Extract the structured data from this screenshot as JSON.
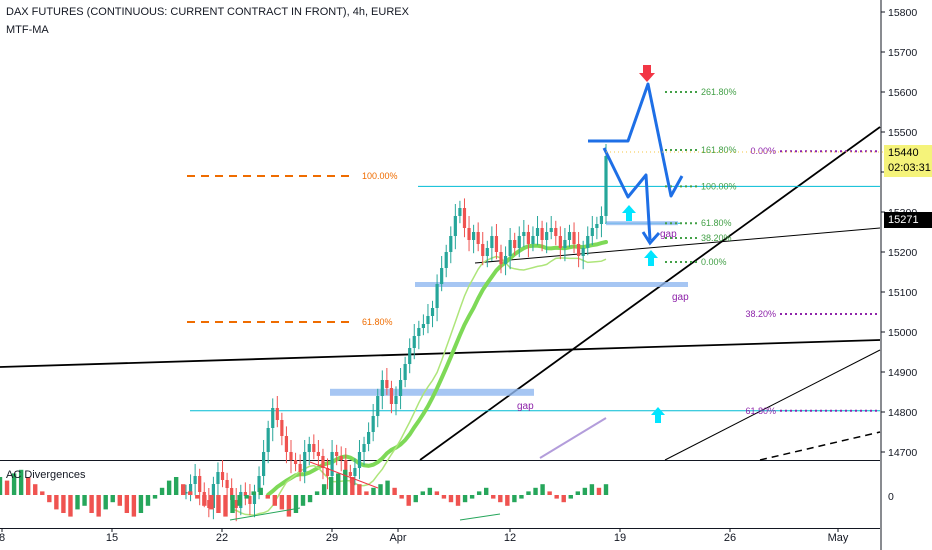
{
  "header": {
    "title": "DAX FUTURES (CONTINUOUS: CURRENT CONTRACT IN FRONT), 4h, EUREX",
    "indicator": "MTF-MA",
    "sub_indicator": "AC Divergences"
  },
  "price_tags": {
    "current": "15440",
    "countdown": "02:03:31",
    "level": "15271"
  },
  "colors": {
    "up": "#26a69a",
    "down": "#ef5350",
    "cyan_line": "#00bcd4",
    "blue_path": "#1e6fe6",
    "orange_fib": "#ef6c00",
    "green_fib": "#43a047",
    "purple_fib": "#8e24aa",
    "gap_fill": "#90b8f0",
    "ma_green": "#7ed957",
    "arrow_cyan": "#00e5ff",
    "arrow_red": "#f23645"
  },
  "chart_data": {
    "type": "candlestick",
    "title": "DAX FUTURES (CONTINUOUS: CURRENT CONTRACT IN FRONT), 4h, EUREX",
    "y_axis": {
      "ticks": [
        15800,
        15700,
        15600,
        15500,
        15400,
        15300,
        15200,
        15100,
        15000,
        14900,
        14800,
        14700
      ],
      "range": [
        14680,
        15830
      ]
    },
    "x_axis": {
      "ticks": [
        "8",
        "15",
        "22",
        "29",
        "Apr",
        "12",
        "19",
        "26",
        "May"
      ]
    },
    "sub_axis_ticks": [
      "0"
    ],
    "close_series": [
      14600,
      14620,
      14640,
      14600,
      14580,
      14560,
      14620,
      14650,
      14630,
      14610,
      14580,
      14560,
      14600,
      14590,
      14570,
      14600,
      14640,
      14700,
      14760,
      14810,
      14780,
      14740,
      14700,
      14680,
      14670,
      14650,
      14700,
      14720,
      14700,
      14690,
      14660,
      14640,
      14700,
      14690,
      14680,
      14650,
      14640,
      14660,
      14700,
      14720,
      14750,
      14790,
      14840,
      14880,
      14860,
      14820,
      14840,
      14880,
      14920,
      14960,
      14990,
      15010,
      15020,
      15040,
      15060,
      15120,
      15160,
      15200,
      15240,
      15290,
      15310,
      15260,
      15230,
      15250,
      15220,
      15190,
      15210,
      15240,
      15200,
      15170,
      15190,
      15230,
      15210,
      15240,
      15250,
      15220,
      15240,
      15260,
      15230,
      15250,
      15260,
      15240,
      15210,
      15230,
      15250,
      15220,
      15190,
      15210,
      15240,
      15260,
      15270,
      15290,
      15440
    ],
    "fib_left": [
      {
        "label": "100.00%",
        "price": 15390
      },
      {
        "label": "61.80%",
        "price": 15025
      }
    ],
    "fib_green": [
      {
        "label": "261.80%",
        "price": 15600
      },
      {
        "label": "161.80%",
        "price": 15455
      },
      {
        "label": "100.00%",
        "price": 15364
      },
      {
        "label": "61.80%",
        "price": 15272
      },
      {
        "label": "38.20%",
        "price": 15235
      },
      {
        "label": "0.00%",
        "price": 15175
      }
    ],
    "fib_purple": [
      {
        "label": "0.00%",
        "price": 15452
      },
      {
        "label": "38.20%",
        "price": 15045
      },
      {
        "label": "61.80%",
        "price": 14803
      }
    ],
    "gap_labels": [
      "gap",
      "gap",
      "gap"
    ],
    "ac_histogram": [
      5,
      4,
      6,
      7,
      5,
      3,
      1,
      -2,
      -4,
      -5,
      -6,
      -4,
      -3,
      -5,
      -6,
      -4,
      -2,
      -3,
      -5,
      -6,
      -5,
      -3,
      -1,
      2,
      4,
      5,
      3,
      1,
      -1,
      -3,
      -4,
      -5,
      -6,
      -5,
      -3,
      -1,
      1,
      2,
      -1,
      -3,
      -4,
      -6,
      -5,
      -3,
      -2,
      1,
      3,
      5,
      6,
      7,
      5,
      3,
      1,
      2,
      3,
      4,
      2,
      -1,
      -3,
      -2,
      1,
      2,
      1,
      -1,
      -2,
      -3,
      -2,
      -1,
      1,
      2,
      -1,
      -2,
      -3,
      -2,
      -1,
      1,
      2,
      3,
      1,
      -1,
      -2,
      -1,
      1,
      2,
      3,
      2,
      3
    ]
  }
}
